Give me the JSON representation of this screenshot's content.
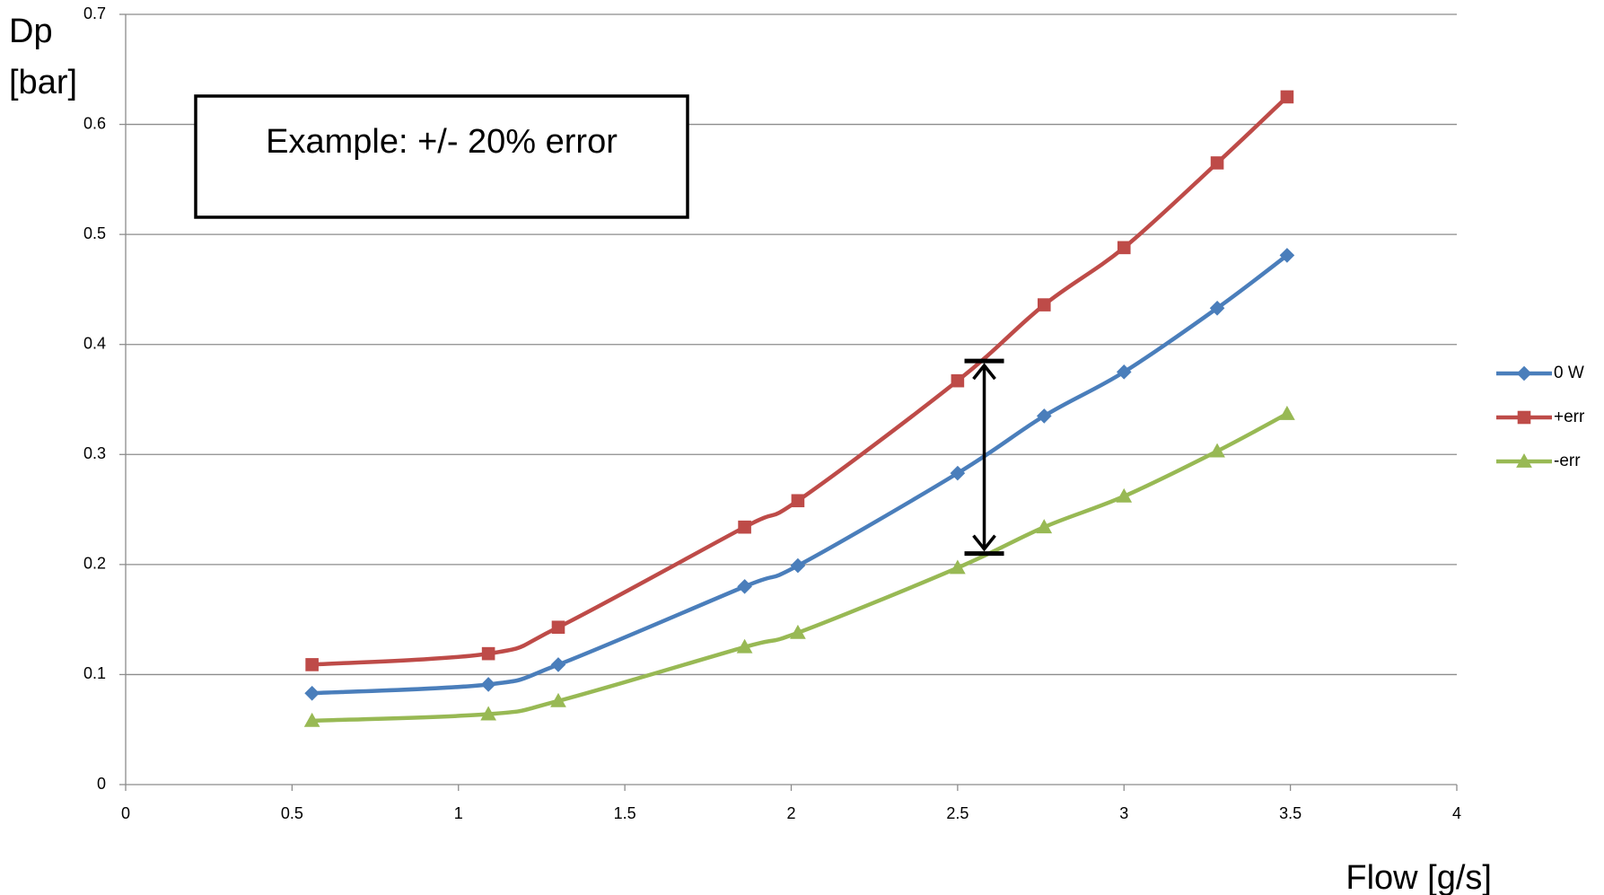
{
  "chart_data": {
    "type": "line",
    "xlabel": "Flow [g/s]",
    "ylabel_line1": "Dp",
    "ylabel_line2": "[bar]",
    "xlim": [
      0,
      4
    ],
    "ylim": [
      0,
      0.7
    ],
    "x_ticks": [
      "0",
      "0.5",
      "1",
      "1.5",
      "2",
      "2.5",
      "3",
      "3.5",
      "4"
    ],
    "y_ticks": [
      "0",
      "0.1",
      "0.2",
      "0.3",
      "0.4",
      "0.5",
      "0.6",
      "0.7"
    ],
    "grid": "horizontal",
    "legend_position": "right",
    "annotation": "Example: +/- 20% error",
    "error_bar": {
      "x": 2.58,
      "y_low": 0.21,
      "y_high": 0.385
    },
    "series": [
      {
        "name": "0 W",
        "color": "#4a7ebb",
        "marker": "diamond",
        "x": [
          0.56,
          1.09,
          1.3,
          1.86,
          2.02,
          2.5,
          2.76,
          3.0,
          3.28,
          3.49
        ],
        "y": [
          0.083,
          0.091,
          0.109,
          0.18,
          0.199,
          0.283,
          0.335,
          0.375,
          0.433,
          0.481
        ]
      },
      {
        "name": "+err",
        "color": "#be4b48",
        "marker": "square",
        "x": [
          0.56,
          1.09,
          1.3,
          1.86,
          2.02,
          2.5,
          2.76,
          3.0,
          3.28,
          3.49
        ],
        "y": [
          0.109,
          0.119,
          0.143,
          0.234,
          0.258,
          0.367,
          0.436,
          0.488,
          0.565,
          0.625
        ]
      },
      {
        "name": "-err",
        "color": "#98b954",
        "marker": "triangle",
        "x": [
          0.56,
          1.09,
          1.3,
          1.86,
          2.02,
          2.5,
          2.76,
          3.0,
          3.28,
          3.49
        ],
        "y": [
          0.058,
          0.064,
          0.076,
          0.125,
          0.138,
          0.197,
          0.234,
          0.262,
          0.303,
          0.337
        ]
      }
    ]
  }
}
